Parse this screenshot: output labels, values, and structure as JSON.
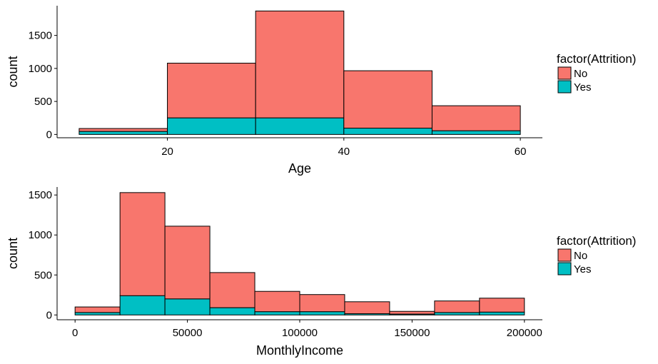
{
  "chart_data": [
    {
      "type": "bar",
      "stacked": true,
      "xlabel": "Age",
      "ylabel": "count",
      "xlim": [
        7.5,
        62.5
      ],
      "ylim": [
        -50,
        1950
      ],
      "xticks": [
        20,
        40,
        60
      ],
      "yticks": [
        0,
        500,
        1000,
        1500
      ],
      "bins": [
        [
          10,
          20
        ],
        [
          20,
          30
        ],
        [
          30,
          40
        ],
        [
          40,
          50
        ],
        [
          50,
          60
        ]
      ],
      "series": [
        {
          "name": "No",
          "values": [
            45,
            830,
            1620,
            870,
            380
          ]
        },
        {
          "name": "Yes",
          "values": [
            45,
            250,
            250,
            95,
            55
          ]
        }
      ],
      "legend": {
        "title": "factor(Attrition)",
        "position": "right",
        "entries": [
          "No",
          "Yes"
        ]
      },
      "grid": false
    },
    {
      "type": "bar",
      "stacked": true,
      "xlabel": "MonthlyIncome",
      "ylabel": "count",
      "xlim": [
        -8000,
        208000
      ],
      "ylim": [
        -60,
        1600
      ],
      "xticks": [
        0,
        50000,
        100000,
        150000,
        200000
      ],
      "yticks": [
        0,
        500,
        1000,
        1500
      ],
      "bins": [
        [
          0,
          20000
        ],
        [
          20000,
          40000
        ],
        [
          40000,
          60000
        ],
        [
          60000,
          80000
        ],
        [
          80000,
          100000
        ],
        [
          100000,
          120000
        ],
        [
          120000,
          140000
        ],
        [
          140000,
          160000
        ],
        [
          160000,
          180000
        ],
        [
          180000,
          200000
        ]
      ],
      "series": [
        {
          "name": "No",
          "values": [
            70,
            1290,
            910,
            440,
            255,
            215,
            150,
            35,
            145,
            175
          ]
        },
        {
          "name": "Yes",
          "values": [
            30,
            240,
            200,
            90,
            40,
            40,
            15,
            10,
            30,
            35
          ]
        }
      ],
      "legend": {
        "title": "factor(Attrition)",
        "position": "right",
        "entries": [
          "No",
          "Yes"
        ]
      },
      "grid": false
    }
  ],
  "colors": {
    "No": "#F8766D",
    "Yes": "#00BFC4",
    "axis": "#000000",
    "text": "#000000"
  }
}
